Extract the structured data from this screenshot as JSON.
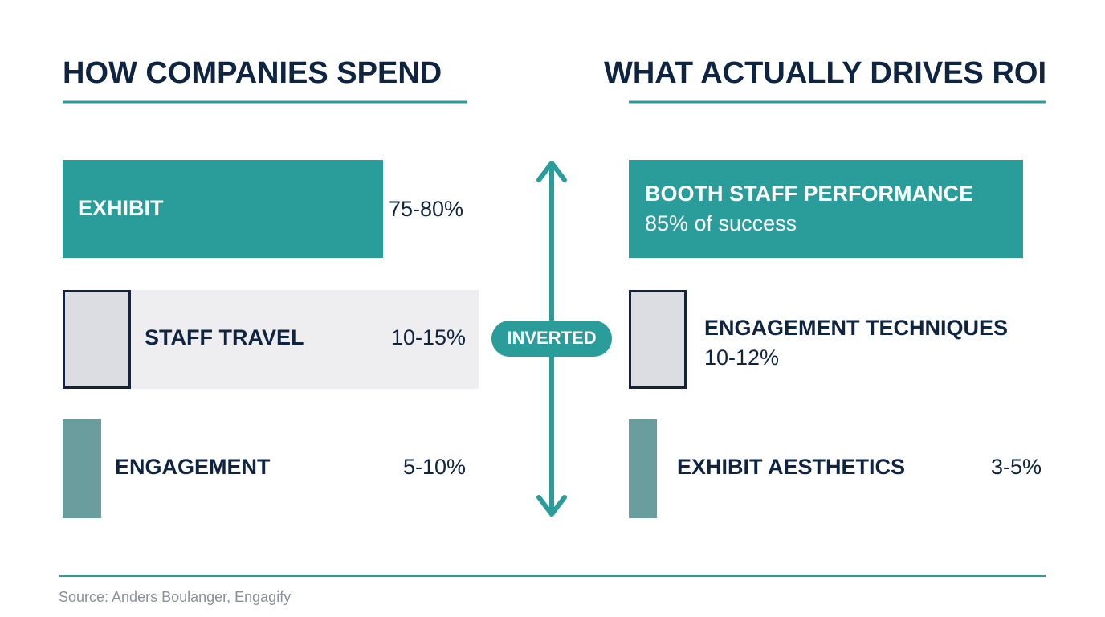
{
  "left": {
    "title": "HOW COMPANIES SPEND",
    "rows": [
      {
        "label": "EXHIBIT",
        "value": "75-80%"
      },
      {
        "label": "STAFF TRAVEL",
        "value": "10-15%"
      },
      {
        "label": "ENGAGEMENT",
        "value": "5-10%"
      }
    ]
  },
  "center": {
    "label": "INVERTED"
  },
  "right": {
    "title": "WHAT ACTUALLY DRIVES ROI",
    "rows": [
      {
        "label": "BOOTH STAFF PERFORMANCE",
        "value": "85% of success"
      },
      {
        "label": "ENGAGEMENT TECHNIQUES",
        "value": "10-12%"
      },
      {
        "label": "EXHIBIT AESTHETICS",
        "value": "3-5%"
      }
    ]
  },
  "footer": {
    "source": "Source: Anders Boulanger, Engagify"
  }
}
